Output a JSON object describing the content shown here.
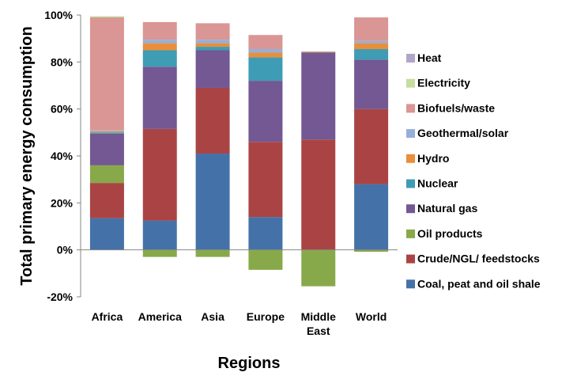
{
  "chart_data": {
    "type": "bar",
    "stacked": true,
    "xlabel": "Regions",
    "ylabel": "Total primary energy consumption",
    "ylim": [
      -20,
      100
    ],
    "yticks": [
      "-20%",
      "0%",
      "20%",
      "40%",
      "60%",
      "80%",
      "100%"
    ],
    "ytick_values": [
      -20,
      0,
      20,
      40,
      60,
      80,
      100
    ],
    "grid": false,
    "legend_position": "right",
    "categories": [
      [
        "Africa"
      ],
      [
        "America"
      ],
      [
        "Asia"
      ],
      [
        "Europe"
      ],
      [
        "Middle",
        "East"
      ],
      [
        "World"
      ]
    ],
    "series": [
      {
        "name": "Coal, peat and oil shale",
        "color": "#4472A8",
        "values": [
          13.5,
          12.5,
          41,
          14,
          0,
          28
        ]
      },
      {
        "name": "Crude/NGL/ feedstocks",
        "color": "#AA4444",
        "values": [
          15,
          39,
          28,
          32,
          47,
          32
        ]
      },
      {
        "name": "Oil products",
        "color": "#88A94A",
        "values": [
          7.5,
          -3,
          -3,
          -8.5,
          -15.5,
          -0.8
        ]
      },
      {
        "name": "Natural gas",
        "color": "#735893",
        "values": [
          13.5,
          26.5,
          16,
          26,
          37,
          21
        ]
      },
      {
        "name": "Nuclear",
        "color": "#3F9CB5",
        "values": [
          0.5,
          7,
          1.5,
          10,
          0,
          4.5
        ]
      },
      {
        "name": "Hydro",
        "color": "#E98E3A",
        "values": [
          0.5,
          3,
          1.5,
          2,
          0.3,
          2.5
        ]
      },
      {
        "name": "Geothermal/solar",
        "color": "#97AFD8",
        "values": [
          0.5,
          1.5,
          1.5,
          1.5,
          0.2,
          1
        ]
      },
      {
        "name": "Biofuels/waste",
        "color": "#DA9694",
        "values": [
          48,
          7.5,
          7,
          6,
          0,
          10
        ]
      },
      {
        "name": "Electricity",
        "color": "#C5DDA0",
        "values": [
          0.5,
          0,
          0,
          0,
          0,
          0
        ]
      },
      {
        "name": "Heat",
        "color": "#B1A6CA",
        "values": [
          0,
          0,
          0,
          0,
          0,
          0
        ]
      }
    ]
  }
}
